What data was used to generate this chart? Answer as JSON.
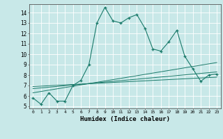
{
  "xlabel": "Humidex (Indice chaleur)",
  "ylabel": "",
  "bg_color": "#c8e8e8",
  "line_color": "#1a7a6a",
  "grid_color": "#ffffff",
  "xlim": [
    -0.5,
    23.5
  ],
  "ylim": [
    4.8,
    14.8
  ],
  "xticks": [
    0,
    1,
    2,
    3,
    4,
    5,
    6,
    7,
    8,
    9,
    10,
    11,
    12,
    13,
    14,
    15,
    16,
    17,
    18,
    19,
    20,
    21,
    22,
    23
  ],
  "yticks": [
    5,
    6,
    7,
    8,
    9,
    10,
    11,
    12,
    13,
    14
  ],
  "main_x": [
    0,
    1,
    2,
    3,
    4,
    5,
    6,
    7,
    8,
    9,
    10,
    11,
    12,
    13,
    14,
    15,
    16,
    17,
    18,
    19,
    20,
    21,
    22,
    23
  ],
  "main_y": [
    5.8,
    5.2,
    6.3,
    5.5,
    5.5,
    7.0,
    7.5,
    9.0,
    13.0,
    14.5,
    13.2,
    13.0,
    13.5,
    13.8,
    12.5,
    10.5,
    10.3,
    11.2,
    12.3,
    9.8,
    8.6,
    7.4,
    8.0,
    8.1
  ],
  "line1_x": [
    0,
    23
  ],
  "line1_y": [
    6.3,
    9.2
  ],
  "line2_x": [
    0,
    23
  ],
  "line2_y": [
    6.7,
    8.3
  ],
  "line3_x": [
    0,
    23
  ],
  "line3_y": [
    6.9,
    7.8
  ]
}
